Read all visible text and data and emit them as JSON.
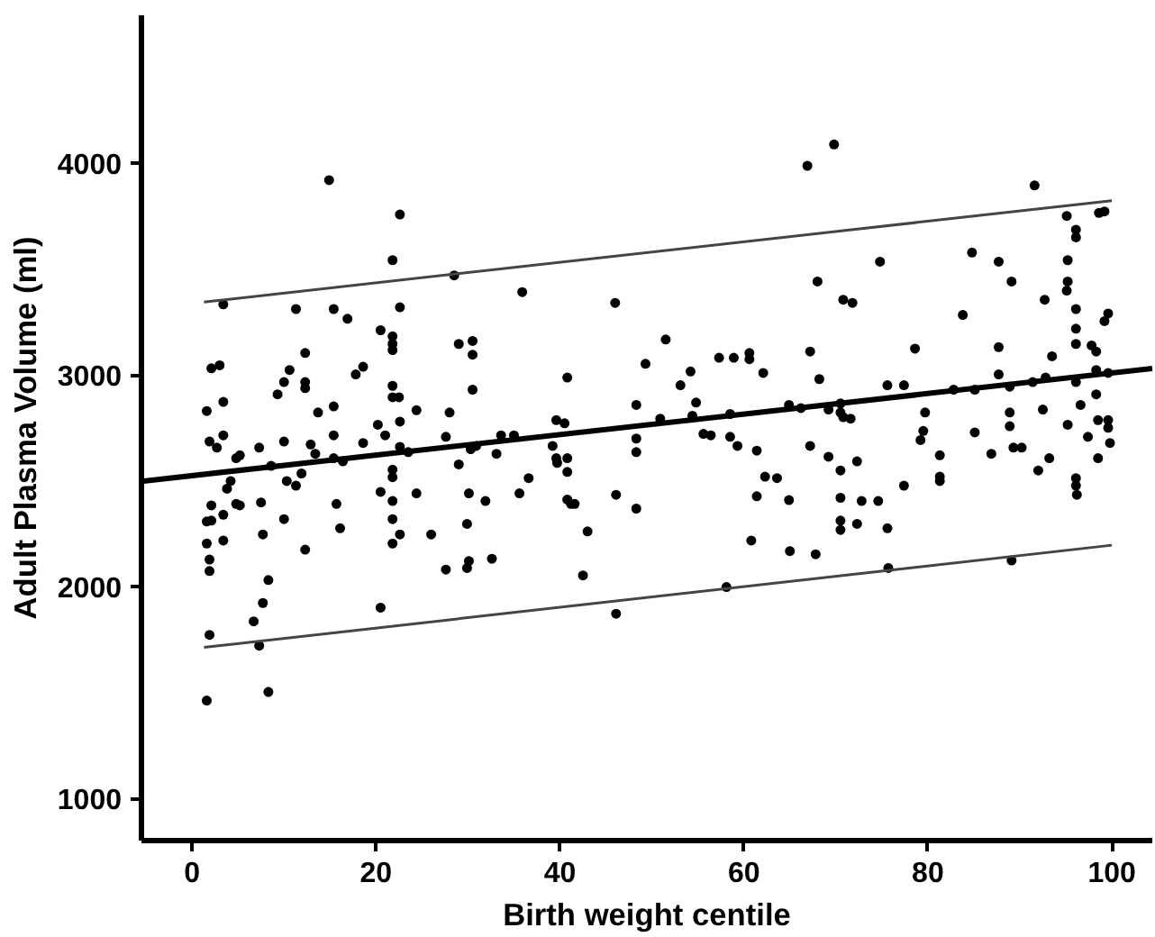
{
  "chart_data": {
    "type": "scatter",
    "xlabel": "Birth weight centile",
    "ylabel": "Adult Plasma Volume (ml)",
    "xlim": [
      -5.5,
      104.4
    ],
    "ylim": [
      800,
      4700
    ],
    "xticks": [
      0,
      20,
      40,
      60,
      80,
      100
    ],
    "yticks": [
      1000,
      2000,
      3000,
      4000
    ],
    "grid": false,
    "marker": "circle",
    "series": [
      {
        "color": "#000000",
        "x": [
          1.6,
          1.6,
          1.6,
          1.6,
          1.9,
          1.9,
          1.9,
          2.1,
          2.1,
          1.9,
          2.1,
          2.7,
          3.0,
          3.4,
          3.4,
          3.4,
          3.4,
          3.4,
          3.8,
          4.2,
          4.8,
          4.8,
          5.2,
          5.2,
          6.7,
          7.3,
          7.3,
          7.5,
          7.7,
          7.7,
          8.3,
          8.3,
          8.6,
          9.3,
          10.0,
          10.0,
          10.0,
          10.3,
          10.6,
          11.3,
          11.3,
          11.9,
          12.3,
          12.3,
          12.3,
          12.3,
          12.9,
          13.4,
          13.7,
          14.9,
          15.4,
          15.4,
          15.4,
          15.4,
          15.7,
          16.1,
          16.4,
          16.9,
          17.8,
          18.6,
          18.6,
          20.2,
          20.5,
          20.5,
          20.5,
          21.0,
          21.8,
          21.8,
          21.8,
          21.8,
          21.8,
          21.8,
          21.8,
          21.8,
          21.8,
          21.8,
          21.8,
          22.5,
          22.6,
          22.6,
          22.6,
          22.6,
          22.6,
          23.5,
          24.4,
          24.4,
          26.0,
          27.6,
          27.6,
          28.0,
          28.5,
          29.0,
          29.0,
          29.9,
          29.9,
          30.1,
          30.1,
          30.3,
          30.5,
          30.5,
          30.5,
          30.9,
          31.9,
          32.6,
          33.1,
          33.6,
          35.0,
          35.6,
          35.9,
          36.6,
          39.2,
          39.6,
          39.6,
          39.7,
          40.5,
          40.8,
          40.8,
          40.8,
          40.8,
          41.2,
          41.6,
          42.5,
          43.0,
          46.0,
          46.1,
          46.1,
          48.3,
          48.3,
          48.3,
          48.3,
          49.3,
          50.9,
          51.5,
          53.1,
          54.2,
          54.4,
          54.8,
          55.6,
          56.4,
          57.3,
          58.1,
          58.5,
          58.5,
          58.9,
          59.3,
          60.6,
          60.6,
          60.8,
          61.4,
          61.4,
          62.1,
          62.3,
          63.6,
          64.9,
          64.9,
          65.0,
          66.2,
          66.9,
          67.2,
          67.2,
          67.8,
          68.0,
          68.2,
          69.2,
          69.2,
          69.8,
          70.5,
          70.5,
          70.5,
          70.5,
          70.5,
          70.5,
          70.8,
          70.8,
          71.6,
          71.8,
          72.3,
          72.3,
          72.8,
          74.6,
          74.8,
          75.6,
          75.6,
          75.7,
          77.4,
          77.4,
          78.6,
          79.2,
          79.5,
          79.7,
          81.3,
          81.3,
          81.3,
          82.8,
          83.8,
          84.8,
          85.1,
          85.1,
          86.9,
          87.7,
          87.7,
          87.7,
          88.9,
          88.9,
          88.9,
          89.1,
          89.1,
          89.3,
          90.2,
          91.4,
          91.6,
          92.0,
          92.5,
          92.7,
          92.8,
          93.2,
          93.5,
          95.1,
          95.1,
          95.2,
          95.2,
          95.2,
          96.1,
          96.1,
          96.1,
          96.1,
          96.1,
          96.1,
          96.1,
          96.1,
          96.2,
          96.6,
          97.4,
          97.8,
          98.3,
          98.3,
          98.3,
          98.5,
          98.5,
          98.6,
          99.2,
          99.2,
          99.6,
          99.6,
          99.6,
          99.6,
          99.8
        ],
        "values": [
          1462,
          2204,
          2308,
          2830,
          1772,
          2074,
          2128,
          2312,
          2384,
          2686,
          3032,
          2657,
          3046,
          3334,
          2873,
          2715,
          2340,
          2218,
          2463,
          2499,
          2607,
          2391,
          2621,
          2384,
          1836,
          1721,
          2657,
          2398,
          2247,
          1923,
          2031,
          1502,
          2571,
          2909,
          2319,
          2686,
          2967,
          2499,
          3024,
          2477,
          3312,
          2535,
          2175,
          2967,
          3104,
          2938,
          2672,
          2628,
          2823,
          3921,
          3312,
          2852,
          2715,
          2607,
          2391,
          2276,
          2592,
          3266,
          3003,
          3039,
          2679,
          2765,
          3212,
          2448,
          1901,
          2715,
          3543,
          3183,
          3147,
          3118,
          2949,
          2895,
          2553,
          2517,
          2405,
          2319,
          2204,
          2895,
          3759,
          3320,
          2780,
          2661,
          2247,
          2636,
          2834,
          2441,
          2247,
          2081,
          2708,
          2823,
          3471,
          3147,
          2578,
          2297,
          2088,
          2121,
          2441,
          2650,
          3161,
          3096,
          2931,
          2665,
          2405,
          2132,
          2628,
          2715,
          2715,
          2441,
          3392,
          2513,
          2665,
          2787,
          2607,
          2585,
          2772,
          2988,
          2607,
          2542,
          2412,
          2391,
          2391,
          2053,
          2261,
          3341,
          2434,
          1872,
          2859,
          2700,
          2636,
          2369,
          3053,
          2794,
          3168,
          2952,
          3017,
          2808,
          2870,
          2722,
          2715,
          3082,
          1998,
          2816,
          2708,
          3082,
          2665,
          3104,
          3075,
          2218,
          2643,
          2427,
          3010,
          2520,
          2513,
          2859,
          2409,
          2168,
          2844,
          3989,
          3111,
          2665,
          2153,
          3442,
          2981,
          2837,
          2614,
          4090,
          2866,
          2823,
          2549,
          2420,
          2312,
          2268,
          2801,
          3356,
          2794,
          3341,
          2592,
          2297,
          2405,
          2405,
          3536,
          2952,
          2276,
          2088,
          2952,
          2477,
          3125,
          2693,
          2736,
          2823,
          2621,
          2520,
          2499,
          2931,
          3284,
          3579,
          2729,
          2931,
          2628,
          3536,
          3132,
          3003,
          2823,
          2758,
          2945,
          2124,
          3442,
          2657,
          2657,
          2967,
          3896,
          2549,
          2837,
          3356,
          2988,
          2607,
          3089,
          3752,
          3399,
          3543,
          3442,
          2765,
          3687,
          3651,
          3312,
          3219,
          3147,
          2967,
          2513,
          2477,
          2434,
          2859,
          2708,
          3140,
          3111,
          3024,
          2909,
          2607,
          2787,
          3766,
          3773,
          3255,
          3291,
          3010,
          2787,
          2751,
          2679
        ]
      },
      {
        "type": "line",
        "color": "#000000",
        "marker": "none",
        "line_style": "solid",
        "x": [
          -5.5,
          104.4
        ],
        "values": [
          2498,
          3031
        ]
      },
      {
        "type": "line",
        "color": "#444444",
        "marker": "none",
        "line_style": "solid",
        "x": [
          1.3,
          100
        ],
        "values": [
          3345,
          3824
        ]
      },
      {
        "type": "line",
        "color": "#444444",
        "marker": "none",
        "line_style": "solid",
        "x": [
          1.3,
          100
        ],
        "values": [
          1713,
          2196
        ]
      }
    ]
  }
}
